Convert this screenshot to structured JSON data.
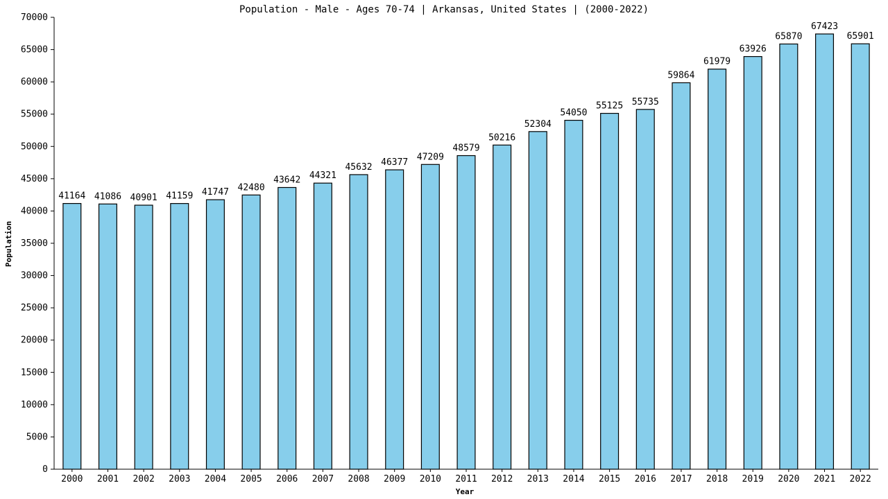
{
  "chart_data": {
    "type": "bar",
    "title": "Population - Male - Ages 70-74 | Arkansas, United States |  (2000-2022)",
    "xlabel": "Year",
    "ylabel": "Population",
    "ylim": [
      0,
      70000
    ],
    "ytick_step": 5000,
    "grid": false,
    "bar_color": "#87ceeb",
    "categories": [
      "2000",
      "2001",
      "2002",
      "2003",
      "2004",
      "2005",
      "2006",
      "2007",
      "2008",
      "2009",
      "2010",
      "2011",
      "2012",
      "2013",
      "2014",
      "2015",
      "2016",
      "2017",
      "2018",
      "2019",
      "2020",
      "2021",
      "2022"
    ],
    "values": [
      41164,
      41086,
      40901,
      41159,
      41747,
      42480,
      43642,
      44321,
      45632,
      46377,
      47209,
      48579,
      50216,
      52304,
      54050,
      55125,
      55735,
      59864,
      61979,
      63926,
      65870,
      67423,
      65901
    ]
  }
}
